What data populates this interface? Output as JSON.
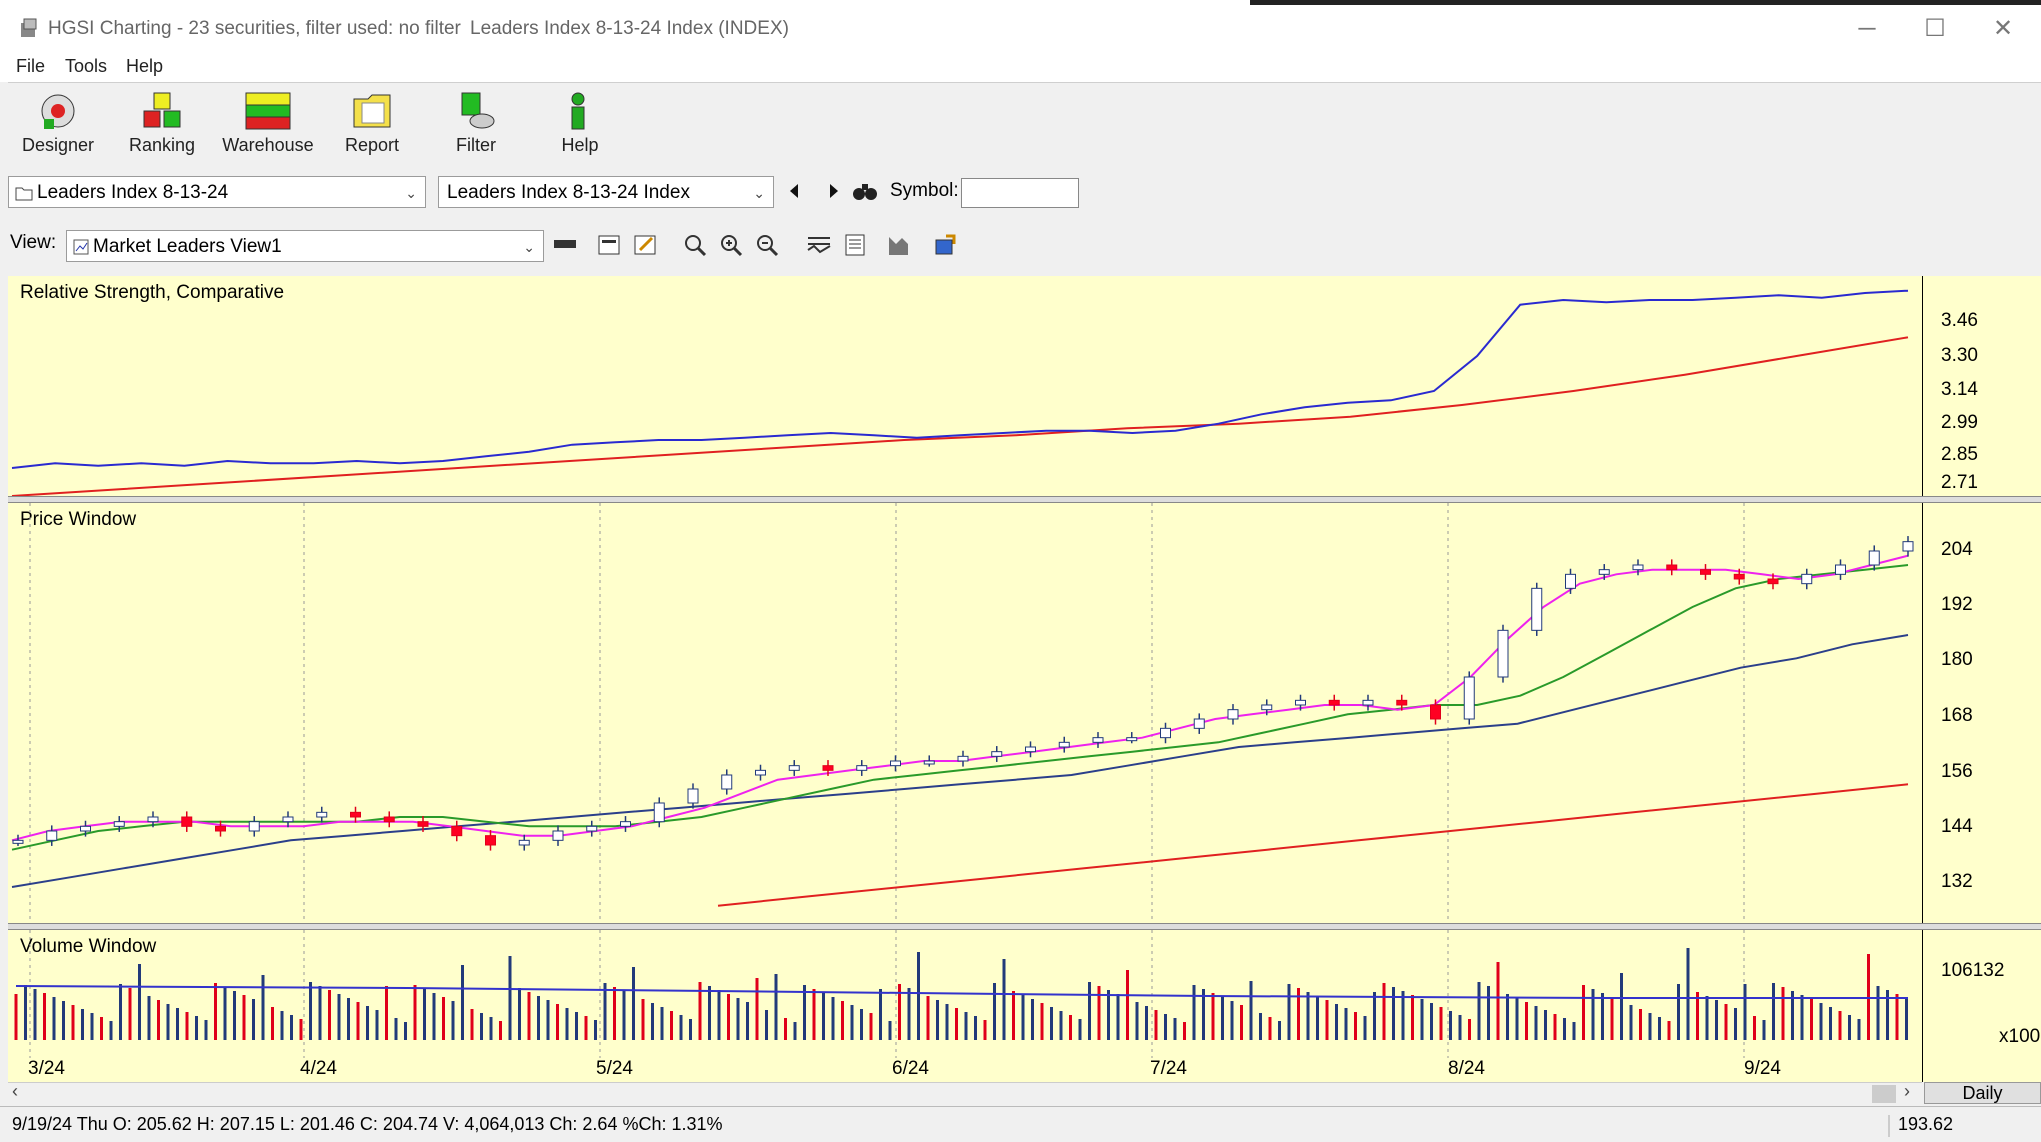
{
  "window": {
    "title": "HGSI Charting - 23 securities, filter used: no filter",
    "subtitle": "Leaders Index 8-13-24 Index (INDEX)",
    "min": "─",
    "max": "☐",
    "close": "✕"
  },
  "menu": [
    "File",
    "Tools",
    "Help"
  ],
  "toolbar": [
    {
      "label": "Designer",
      "icon": "designer-icon"
    },
    {
      "label": "Ranking",
      "icon": "ranking-icon"
    },
    {
      "label": "Warehouse",
      "icon": "warehouse-icon"
    },
    {
      "label": "Report",
      "icon": "report-icon"
    },
    {
      "label": "Filter",
      "icon": "filter-icon"
    },
    {
      "label": "Help",
      "icon": "help-icon"
    }
  ],
  "selectors": {
    "list": "Leaders Index 8-13-24",
    "security": "Leaders Index 8-13-24 Index",
    "symbol_label": "Symbol:",
    "symbol_value": "",
    "view_label": "View:",
    "view": "Market Leaders View1"
  },
  "panels": {
    "rs": {
      "title": "Relative Strength, Comparative",
      "ticks": [
        "3.46",
        "3.30",
        "3.14",
        "2.99",
        "2.85",
        "2.71"
      ]
    },
    "price": {
      "title": "Price Window",
      "ticks": [
        "204",
        "192",
        "180",
        "168",
        "156",
        "144",
        "132"
      ]
    },
    "volume": {
      "title": "Volume Window",
      "ticks": [
        "106132",
        "x100"
      ]
    }
  },
  "dates": [
    "3/24",
    "4/24",
    "5/24",
    "6/24",
    "7/24",
    "8/24",
    "9/24"
  ],
  "timeframe": "Daily",
  "status": {
    "text": "9/19/24 Thu O: 205.62 H: 207.15 L: 201.46 C: 204.74 V: 4,064,013 Ch: 2.64 %Ch: 1.31%",
    "value": "193.62"
  },
  "chart_data": {
    "type": "line",
    "rs_line": [
      2.82,
      2.84,
      2.83,
      2.84,
      2.83,
      2.85,
      2.84,
      2.84,
      2.85,
      2.84,
      2.85,
      2.87,
      2.89,
      2.92,
      2.93,
      2.94,
      2.94,
      2.95,
      2.96,
      2.97,
      2.96,
      2.95,
      2.96,
      2.97,
      2.98,
      2.98,
      2.97,
      2.98,
      3.01,
      3.05,
      3.08,
      3.1,
      3.11,
      3.15,
      3.3,
      3.52,
      3.54,
      3.53,
      3.54,
      3.54,
      3.55,
      3.56,
      3.55,
      3.57,
      3.58
    ],
    "rs_avg": [
      2.7,
      2.73,
      2.76,
      2.79,
      2.82,
      2.85,
      2.88,
      2.91,
      2.94,
      2.96,
      2.99,
      3.01,
      3.04,
      3.09,
      3.15,
      3.22,
      3.3,
      3.38
    ],
    "price_close": [
      141,
      143,
      144,
      145,
      146,
      144,
      143,
      145,
      146,
      147,
      146,
      145,
      144,
      142,
      140,
      141,
      143,
      144,
      145,
      149,
      152,
      155,
      156,
      157,
      156,
      157,
      158,
      158,
      159,
      160,
      161,
      162,
      163,
      163,
      165,
      167,
      169,
      170,
      171,
      170,
      171,
      170,
      167,
      176,
      186,
      195,
      198,
      199,
      200,
      199,
      198,
      197,
      196,
      198,
      200,
      203,
      205
    ],
    "ma_short": [
      141,
      143,
      144,
      145,
      145,
      145,
      144,
      144,
      144,
      145,
      145,
      145,
      144,
      143,
      142,
      142,
      143,
      144,
      146,
      148,
      151,
      154,
      155,
      156,
      157,
      158,
      158,
      159,
      160,
      161,
      162,
      163,
      165,
      167,
      168,
      169,
      170,
      170,
      169,
      170,
      176,
      184,
      191,
      196,
      198,
      199,
      199,
      199,
      198,
      197,
      198,
      200,
      202
    ],
    "ma_mid": [
      139,
      141,
      143,
      144,
      145,
      145,
      145,
      145,
      145,
      146,
      146,
      145,
      144,
      144,
      144,
      145,
      146,
      148,
      150,
      152,
      154,
      155,
      156,
      157,
      158,
      159,
      160,
      161,
      162,
      164,
      166,
      168,
      169,
      170,
      170,
      172,
      176,
      181,
      186,
      191,
      195,
      197,
      198,
      199,
      200
    ],
    "ma_long": [
      131,
      133,
      135,
      137,
      139,
      141,
      142,
      143,
      144,
      145,
      146,
      147,
      148,
      149,
      150,
      151,
      152,
      153,
      154,
      155,
      157,
      159,
      161,
      162,
      163,
      164,
      165,
      166,
      169,
      172,
      175,
      178,
      180,
      183,
      185
    ],
    "ma_200": [
      127,
      129,
      131,
      133,
      135,
      137,
      139,
      141,
      143,
      145,
      147,
      149,
      151,
      153
    ]
  }
}
